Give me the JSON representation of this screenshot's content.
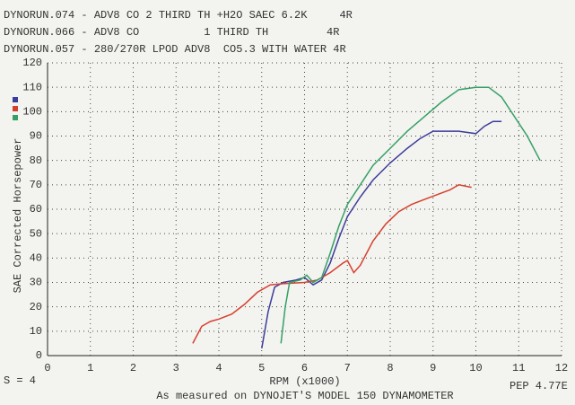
{
  "chart_data": {
    "type": "line",
    "x_label": "RPM (x1000)",
    "y_label": "SAE Corrected Horsepower",
    "footnote": "As measured on DYNOJET'S MODEL 150 DYNAMOMETER",
    "smoothing": "S = 4",
    "corner_note": "PEP 4.77E",
    "xlim": [
      0,
      12
    ],
    "xticks": [
      0,
      1,
      2,
      3,
      4,
      5,
      6,
      7,
      8,
      9,
      10,
      11,
      12
    ],
    "ylim": [
      0,
      120
    ],
    "yticks": [
      0,
      10,
      20,
      30,
      40,
      50,
      60,
      70,
      80,
      90,
      100,
      110,
      120
    ],
    "grid": true,
    "series": [
      {
        "name": "DYNORUN.074 - ADV8 CO 2 THIRD TH +H2O SAEC 6.2K     4R",
        "color": "#3c3c9c",
        "x": [
          5.0,
          5.15,
          5.3,
          5.5,
          5.8,
          6.0,
          6.2,
          6.4,
          6.6,
          6.8,
          7.0,
          7.3,
          7.6,
          8.0,
          8.4,
          8.7,
          9.0,
          9.3,
          9.6,
          10.0,
          10.2,
          10.4,
          10.6
        ],
        "values": [
          3,
          18,
          28,
          30,
          31,
          32,
          29,
          31,
          38,
          48,
          57,
          65,
          72,
          79,
          85,
          89,
          92,
          92,
          92,
          91,
          94,
          96,
          96
        ]
      },
      {
        "name": "DYNORUN.066 - ADV8 CO          1 THIRD TH         4R",
        "color": "#d5402e",
        "x": [
          3.39,
          3.6,
          3.8,
          4.0,
          4.3,
          4.6,
          4.9,
          5.2,
          5.5,
          6.0,
          6.3,
          6.6,
          6.9,
          7.0,
          7.15,
          7.3,
          7.6,
          7.9,
          8.2,
          8.5,
          8.8,
          9.1,
          9.4,
          9.6,
          9.9
        ],
        "values": [
          5,
          12,
          14,
          15,
          17,
          21,
          26,
          29,
          29.5,
          30,
          31,
          34,
          38,
          39,
          34,
          37,
          47,
          54,
          59,
          62,
          64,
          66,
          68,
          70,
          69
        ]
      },
      {
        "name": "DYNORUN.057 - 280/270R LPOD ADV8  CO5.3 WITH WATER 4R",
        "color": "#35a066",
        "x": [
          5.45,
          5.55,
          5.65,
          5.9,
          6.05,
          6.2,
          6.4,
          6.6,
          6.8,
          7.0,
          7.3,
          7.6,
          8.0,
          8.4,
          8.8,
          9.2,
          9.6,
          10.0,
          10.3,
          10.6,
          10.9,
          11.2,
          11.5
        ],
        "values": [
          5,
          20,
          30,
          31,
          33,
          30,
          32,
          42,
          53,
          62,
          70,
          78,
          85,
          92,
          98,
          104,
          109,
          110,
          110,
          106,
          98,
          90,
          80
        ]
      }
    ]
  }
}
